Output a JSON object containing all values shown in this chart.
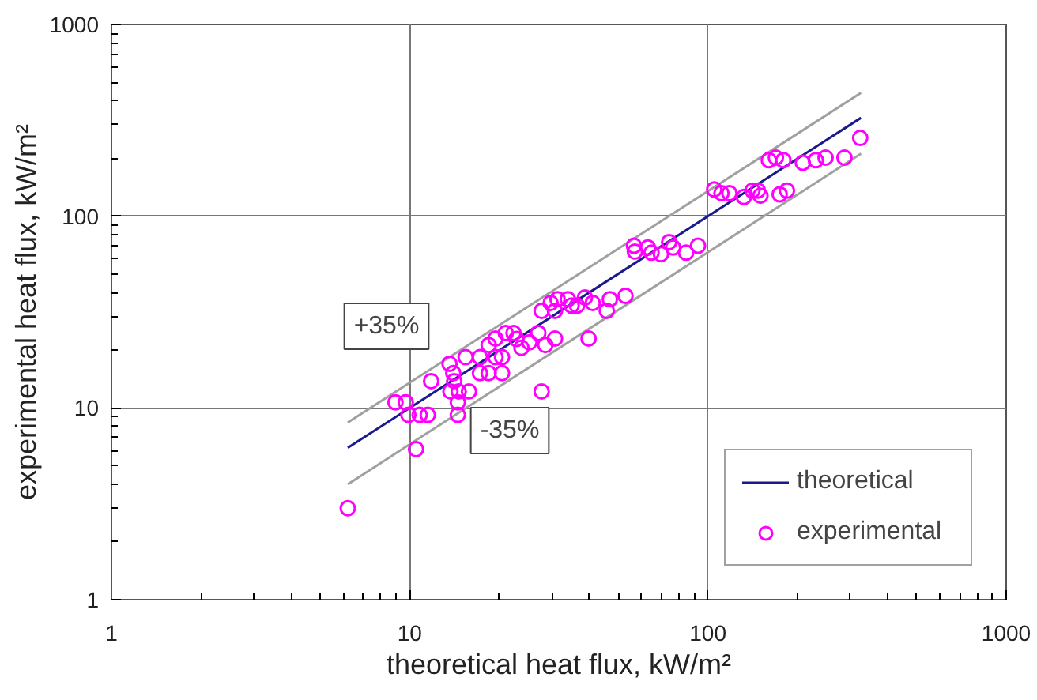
{
  "chart_data": {
    "type": "scatter",
    "xlabel": "theoretical heat flux, kW/m²",
    "ylabel": "experimental heat flux, kW/m²",
    "log": "xy",
    "xlim": [
      1,
      1000
    ],
    "ylim": [
      1,
      1000
    ],
    "xticks": [
      1,
      10,
      100,
      1000
    ],
    "yticks": [
      1,
      10,
      100,
      1000
    ],
    "grid": true,
    "legend": "bottom right",
    "annotations": [
      "+35%",
      "-35%"
    ],
    "series": [
      {
        "name": "theoretical",
        "type": "line",
        "color": "#1a1a8c",
        "marker": "none",
        "line_style": "solid",
        "x": [
          6.2,
          326
        ],
        "values": [
          6.2,
          326
        ]
      },
      {
        "type": "line",
        "color": "#a0a0a0",
        "marker": "none",
        "line_style": "solid",
        "x": [
          6.2,
          326
        ],
        "values": [
          8.4,
          440
        ]
      },
      {
        "type": "line",
        "color": "#a0a0a0",
        "marker": "none",
        "line_style": "solid",
        "x": [
          6.2,
          326
        ],
        "values": [
          4.0,
          212
        ]
      },
      {
        "name": "experimental",
        "color": "#ff00ff",
        "marker": "circle",
        "x": [
          6.2,
          8.96,
          9.7,
          9.9,
          10.8,
          11.5,
          10.5,
          11.8,
          13.6,
          14.0,
          14.1,
          13.7,
          14.6,
          14.5,
          14.5,
          15.8,
          15.4,
          17.2,
          17.2,
          18.4,
          18.4,
          19.4,
          19.4,
          20.4,
          20.4,
          21.0,
          22.3,
          22.8,
          23.7,
          25.2,
          27.0,
          27.7,
          28.5,
          30.7,
          27.7,
          29.7,
          31.3,
          30.7,
          33.9,
          34.9,
          36.4,
          38.7,
          41.1,
          39.8,
          45.8,
          46.9,
          52.9,
          56.5,
          56.9,
          62.9,
          64.7,
          69.6,
          74.1,
          76.4,
          84.5,
          92.6,
          105,
          111,
          118,
          132,
          141,
          147,
          150,
          160,
          169,
          179,
          174,
          184,
          208,
          230,
          248,
          287,
          324
        ],
        "values": [
          3.0,
          10.7,
          10.7,
          9.2,
          9.2,
          9.2,
          6.1,
          13.8,
          17.0,
          15.2,
          13.8,
          12.2,
          12.2,
          10.7,
          9.2,
          12.2,
          18.4,
          18.4,
          15.2,
          15.2,
          21.3,
          23.0,
          18.4,
          18.4,
          15.2,
          24.6,
          24.6,
          22.9,
          20.6,
          22.0,
          24.6,
          32.1,
          21.3,
          23.0,
          12.2,
          35.3,
          36.9,
          32.1,
          36.9,
          34.2,
          34.2,
          37.7,
          35.3,
          23.0,
          32.1,
          36.9,
          38.4,
          70.2,
          65.4,
          68.7,
          64.6,
          63.4,
          73.3,
          68.7,
          64.6,
          70.2,
          138,
          132,
          132,
          126,
          136,
          136,
          128,
          196,
          202,
          196,
          130,
          136,
          190,
          196,
          202,
          202,
          256
        ]
      }
    ]
  }
}
